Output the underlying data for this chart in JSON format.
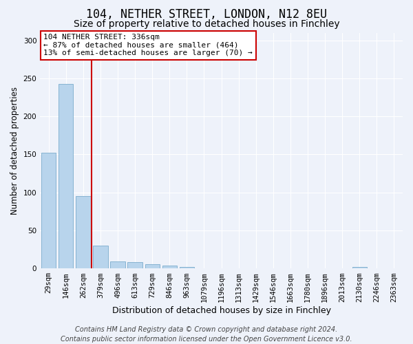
{
  "title1": "104, NETHER STREET, LONDON, N12 8EU",
  "title2": "Size of property relative to detached houses in Finchley",
  "xlabel": "Distribution of detached houses by size in Finchley",
  "ylabel": "Number of detached properties",
  "categories": [
    "29sqm",
    "146sqm",
    "262sqm",
    "379sqm",
    "496sqm",
    "613sqm",
    "729sqm",
    "846sqm",
    "963sqm",
    "1079sqm",
    "1196sqm",
    "1313sqm",
    "1429sqm",
    "1546sqm",
    "1663sqm",
    "1780sqm",
    "1896sqm",
    "2013sqm",
    "2130sqm",
    "2246sqm",
    "2363sqm"
  ],
  "values": [
    152,
    243,
    95,
    30,
    9,
    8,
    6,
    4,
    2,
    0,
    0,
    0,
    0,
    0,
    0,
    0,
    0,
    0,
    2,
    0,
    0
  ],
  "bar_color": "#b8d4ec",
  "bar_edge_color": "#7aaccc",
  "vline_color": "#cc0000",
  "annotation_text": "104 NETHER STREET: 336sqm\n← 87% of detached houses are smaller (464)\n13% of semi-detached houses are larger (70) →",
  "annotation_box_facecolor": "#ffffff",
  "annotation_box_edgecolor": "#cc0000",
  "ylim": [
    0,
    310
  ],
  "yticks": [
    0,
    50,
    100,
    150,
    200,
    250,
    300
  ],
  "footer": "Contains HM Land Registry data © Crown copyright and database right 2024.\nContains public sector information licensed under the Open Government Licence v3.0.",
  "bg_color": "#eef2fa",
  "grid_color": "#ffffff",
  "title1_fontsize": 12,
  "title2_fontsize": 10,
  "xlabel_fontsize": 9,
  "ylabel_fontsize": 8.5,
  "tick_fontsize": 7.5,
  "annotation_fontsize": 8,
  "footer_fontsize": 7
}
